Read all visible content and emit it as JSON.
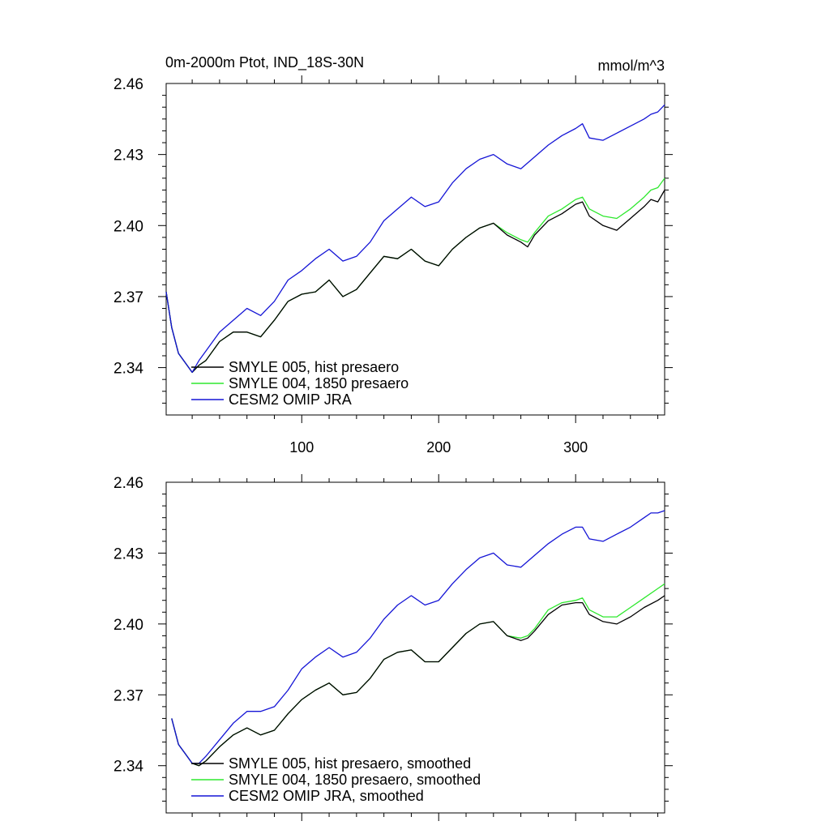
{
  "chart_data": [
    {
      "type": "line",
      "title": "0m-2000m Ptot, IND_18S-30N",
      "units": "mmol/m^3",
      "xlim": [
        1,
        365
      ],
      "ylim": [
        2.32,
        2.46
      ],
      "xticks": [
        100,
        200,
        300
      ],
      "xtick_labels": [
        "100",
        "200",
        "300"
      ],
      "yticks": [
        2.34,
        2.37,
        2.4,
        2.43,
        2.46
      ],
      "ytick_labels": [
        "2.34",
        "2.37",
        "2.40",
        "2.43",
        "2.46"
      ],
      "legend_position": "bottom-left",
      "series": [
        {
          "name": "SMYLE 005, hist presaero",
          "color": "#000000",
          "x": [
            1,
            5,
            10,
            15,
            20,
            25,
            30,
            40,
            50,
            60,
            70,
            80,
            90,
            100,
            110,
            120,
            130,
            140,
            150,
            160,
            170,
            180,
            190,
            200,
            210,
            220,
            230,
            240,
            250,
            260,
            265,
            270,
            280,
            290,
            300,
            305,
            310,
            320,
            330,
            340,
            350,
            355,
            360,
            365
          ],
          "y": [
            2.372,
            2.357,
            2.346,
            2.342,
            2.338,
            2.341,
            2.343,
            2.351,
            2.355,
            2.355,
            2.353,
            2.36,
            2.368,
            2.371,
            2.372,
            2.377,
            2.37,
            2.373,
            2.38,
            2.387,
            2.386,
            2.39,
            2.385,
            2.383,
            2.39,
            2.395,
            2.399,
            2.401,
            2.396,
            2.393,
            2.391,
            2.396,
            2.402,
            2.405,
            2.409,
            2.41,
            2.404,
            2.4,
            2.398,
            2.403,
            2.408,
            2.411,
            2.41,
            2.415
          ]
        },
        {
          "name": "SMYLE 004, 1850 presaero",
          "color": "#2ee82e",
          "x": [
            1,
            5,
            10,
            15,
            20,
            25,
            30,
            40,
            50,
            60,
            70,
            80,
            90,
            100,
            110,
            120,
            130,
            140,
            150,
            160,
            170,
            180,
            190,
            200,
            210,
            220,
            230,
            240,
            250,
            260,
            265,
            270,
            280,
            290,
            300,
            305,
            310,
            320,
            330,
            340,
            350,
            355,
            360,
            365
          ],
          "y": [
            2.372,
            2.357,
            2.346,
            2.342,
            2.338,
            2.341,
            2.343,
            2.351,
            2.355,
            2.355,
            2.353,
            2.36,
            2.368,
            2.371,
            2.372,
            2.377,
            2.37,
            2.373,
            2.38,
            2.387,
            2.386,
            2.39,
            2.385,
            2.383,
            2.39,
            2.395,
            2.399,
            2.401,
            2.397,
            2.394,
            2.393,
            2.397,
            2.404,
            2.407,
            2.411,
            2.412,
            2.407,
            2.404,
            2.403,
            2.407,
            2.412,
            2.415,
            2.416,
            2.42
          ]
        },
        {
          "name": "CESM2 OMIP JRA",
          "color": "#1515d6",
          "x": [
            1,
            5,
            10,
            15,
            20,
            25,
            30,
            40,
            50,
            60,
            70,
            80,
            90,
            100,
            110,
            120,
            130,
            140,
            150,
            160,
            170,
            180,
            190,
            200,
            210,
            220,
            230,
            240,
            250,
            260,
            270,
            280,
            290,
            300,
            305,
            310,
            320,
            330,
            340,
            350,
            355,
            360,
            365
          ],
          "y": [
            2.372,
            2.357,
            2.346,
            2.342,
            2.338,
            2.343,
            2.347,
            2.355,
            2.36,
            2.365,
            2.362,
            2.368,
            2.377,
            2.381,
            2.386,
            2.39,
            2.385,
            2.387,
            2.393,
            2.402,
            2.407,
            2.412,
            2.408,
            2.41,
            2.418,
            2.424,
            2.428,
            2.43,
            2.426,
            2.424,
            2.429,
            2.434,
            2.438,
            2.441,
            2.443,
            2.437,
            2.436,
            2.439,
            2.442,
            2.445,
            2.447,
            2.448,
            2.451
          ]
        }
      ]
    },
    {
      "type": "line",
      "xlim": [
        1,
        365
      ],
      "ylim": [
        2.32,
        2.46
      ],
      "xticks": [
        100,
        200,
        300
      ],
      "yticks": [
        2.34,
        2.37,
        2.4,
        2.43,
        2.46
      ],
      "ytick_labels": [
        "2.34",
        "2.37",
        "2.40",
        "2.43",
        "2.46"
      ],
      "legend_position": "bottom-left",
      "series": [
        {
          "name": "SMYLE 005, hist presaero, smoothed",
          "color": "#000000",
          "x": [
            5,
            10,
            15,
            20,
            25,
            30,
            40,
            50,
            60,
            70,
            80,
            90,
            100,
            110,
            120,
            130,
            140,
            150,
            160,
            170,
            180,
            190,
            200,
            210,
            220,
            230,
            240,
            250,
            260,
            265,
            270,
            280,
            290,
            300,
            305,
            310,
            320,
            330,
            340,
            350,
            360,
            365
          ],
          "y": [
            2.36,
            2.349,
            2.345,
            2.341,
            2.34,
            2.342,
            2.348,
            2.353,
            2.356,
            2.353,
            2.355,
            2.362,
            2.368,
            2.372,
            2.375,
            2.37,
            2.371,
            2.377,
            2.385,
            2.388,
            2.389,
            2.384,
            2.384,
            2.39,
            2.396,
            2.4,
            2.401,
            2.395,
            2.393,
            2.394,
            2.397,
            2.404,
            2.408,
            2.409,
            2.409,
            2.404,
            2.401,
            2.4,
            2.403,
            2.407,
            2.41,
            2.412
          ]
        },
        {
          "name": "SMYLE 004, 1850 presaero, smoothed",
          "color": "#2ee82e",
          "x": [
            5,
            10,
            15,
            20,
            25,
            30,
            40,
            50,
            60,
            70,
            80,
            90,
            100,
            110,
            120,
            130,
            140,
            150,
            160,
            170,
            180,
            190,
            200,
            210,
            220,
            230,
            240,
            250,
            260,
            265,
            270,
            280,
            290,
            300,
            305,
            310,
            320,
            330,
            340,
            350,
            360,
            365
          ],
          "y": [
            2.36,
            2.349,
            2.345,
            2.341,
            2.34,
            2.342,
            2.348,
            2.353,
            2.356,
            2.353,
            2.355,
            2.362,
            2.368,
            2.372,
            2.375,
            2.37,
            2.371,
            2.377,
            2.385,
            2.388,
            2.389,
            2.384,
            2.384,
            2.39,
            2.396,
            2.4,
            2.401,
            2.395,
            2.394,
            2.395,
            2.398,
            2.406,
            2.409,
            2.41,
            2.411,
            2.406,
            2.403,
            2.403,
            2.407,
            2.411,
            2.415,
            2.417
          ]
        },
        {
          "name": "CESM2 OMIP JRA, smoothed",
          "color": "#1515d6",
          "x": [
            5,
            10,
            15,
            20,
            25,
            30,
            40,
            50,
            60,
            70,
            80,
            90,
            100,
            110,
            120,
            130,
            140,
            150,
            160,
            170,
            180,
            190,
            200,
            210,
            220,
            230,
            240,
            250,
            260,
            270,
            280,
            290,
            300,
            305,
            310,
            320,
            330,
            340,
            350,
            355,
            360,
            365
          ],
          "y": [
            2.36,
            2.349,
            2.345,
            2.341,
            2.341,
            2.344,
            2.351,
            2.358,
            2.363,
            2.363,
            2.365,
            2.372,
            2.381,
            2.386,
            2.39,
            2.386,
            2.388,
            2.394,
            2.402,
            2.408,
            2.412,
            2.408,
            2.41,
            2.417,
            2.423,
            2.428,
            2.43,
            2.425,
            2.424,
            2.429,
            2.434,
            2.438,
            2.441,
            2.441,
            2.436,
            2.435,
            2.438,
            2.441,
            2.445,
            2.447,
            2.447,
            2.448
          ]
        }
      ]
    }
  ]
}
